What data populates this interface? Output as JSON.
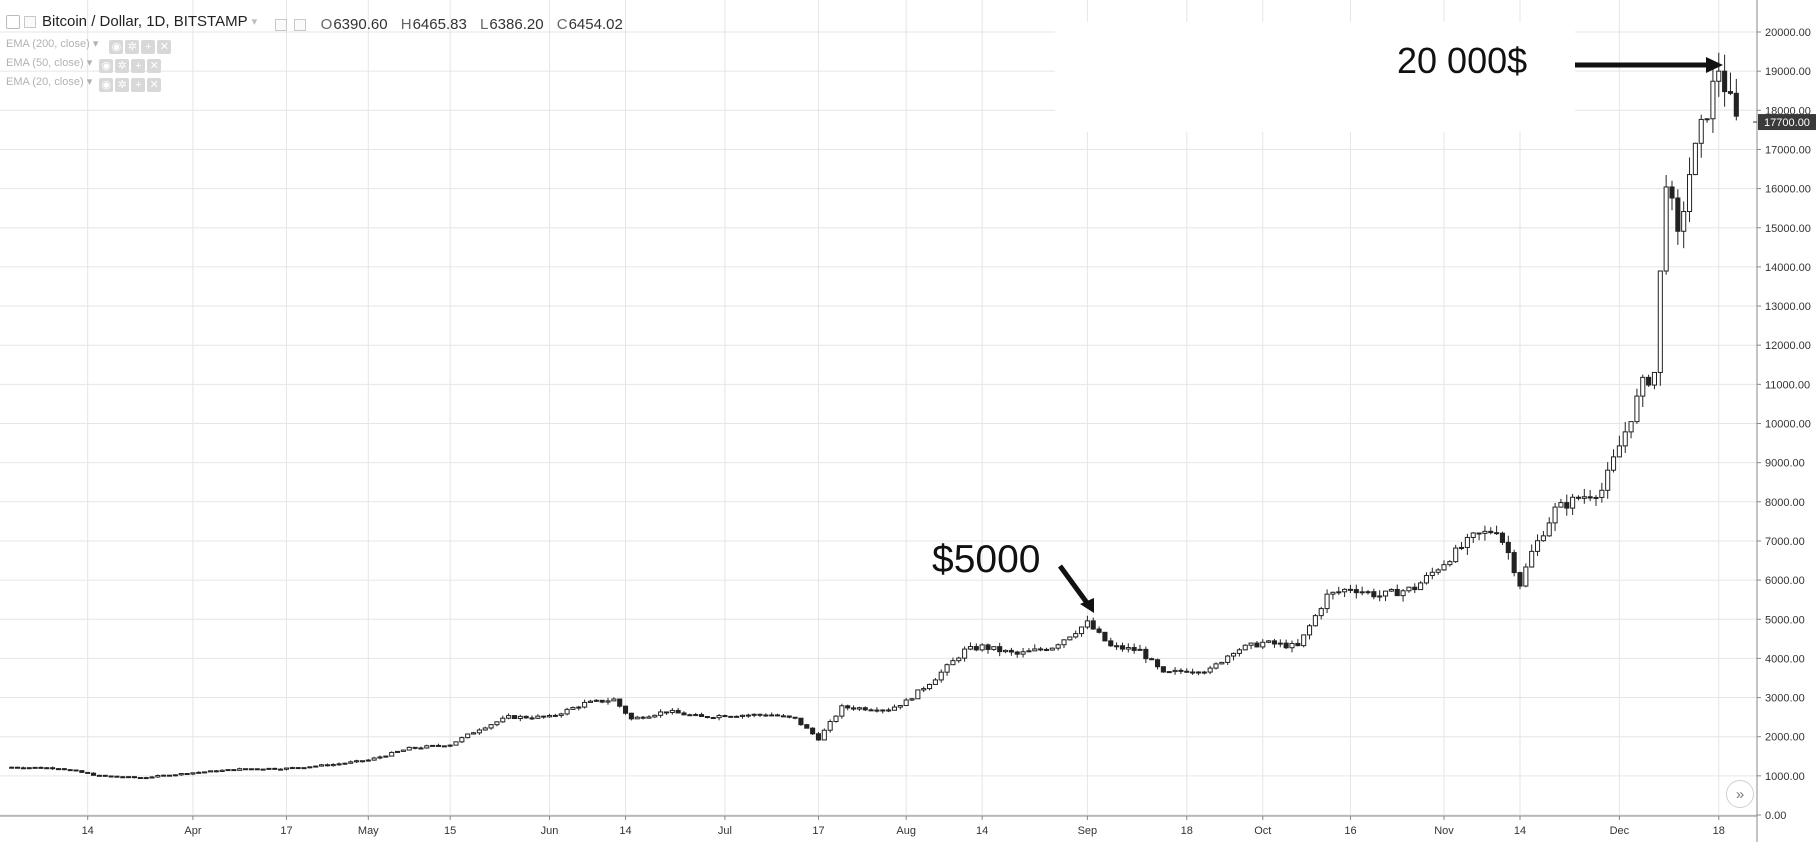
{
  "header": {
    "symbol": "Bitcoin / Dollar, 1D, BITSTAMP",
    "ohlc": {
      "o_label": "O",
      "o_value": "6390.60",
      "h_label": "H",
      "h_value": "6465.83",
      "l_label": "L",
      "l_value": "6386.20",
      "c_label": "C",
      "c_value": "6454.02"
    },
    "indicators": [
      {
        "label": "EMA (200, close)"
      },
      {
        "label": "EMA (50, close)"
      },
      {
        "label": "EMA (20, close)"
      }
    ]
  },
  "annotations": {
    "left_label": "$5000",
    "right_label": "20 000$"
  },
  "price_tag": "17700.00",
  "colors": {
    "up": "#ffffff",
    "down": "#222222",
    "grid": "#e6e6e6",
    "axis_text": "#333333",
    "price_tag_bg": "#3a3a3a"
  },
  "chart_data": {
    "type": "candlestick",
    "title": "Bitcoin / Dollar, 1D, BITSTAMP",
    "xlabel": "",
    "ylabel": "",
    "ylim": [
      0,
      20000
    ],
    "y_ticks": [
      "0.00",
      "1000.00",
      "2000.00",
      "3000.00",
      "4000.00",
      "5000.00",
      "6000.00",
      "7000.00",
      "8000.00",
      "9000.00",
      "10000.00",
      "11000.00",
      "12000.00",
      "13000.00",
      "14000.00",
      "15000.00",
      "16000.00",
      "17000.00",
      "18000.00",
      "19000.00",
      "20000.00"
    ],
    "x_labels": [
      {
        "label": "14",
        "day": 13
      },
      {
        "label": "Apr",
        "day": 31
      },
      {
        "label": "17",
        "day": 47
      },
      {
        "label": "May",
        "day": 61
      },
      {
        "label": "15",
        "day": 75
      },
      {
        "label": "Jun",
        "day": 92
      },
      {
        "label": "14",
        "day": 105
      },
      {
        "label": "Jul",
        "day": 122
      },
      {
        "label": "17",
        "day": 138
      },
      {
        "label": "Aug",
        "day": 153
      },
      {
        "label": "14",
        "day": 166
      },
      {
        "label": "Sep",
        "day": 184
      },
      {
        "label": "18",
        "day": 201
      },
      {
        "label": "Oct",
        "day": 214
      },
      {
        "label": "16",
        "day": 229
      },
      {
        "label": "Nov",
        "day": 245
      },
      {
        "label": "14",
        "day": 258
      },
      {
        "label": "Dec",
        "day": 275
      },
      {
        "label": "18",
        "day": 292
      }
    ],
    "close_points": [
      [
        0,
        1220
      ],
      [
        8,
        1200
      ],
      [
        15,
        1000
      ],
      [
        22,
        950
      ],
      [
        31,
        1080
      ],
      [
        40,
        1180
      ],
      [
        47,
        1190
      ],
      [
        55,
        1290
      ],
      [
        61,
        1400
      ],
      [
        68,
        1700
      ],
      [
        75,
        1800
      ],
      [
        80,
        2200
      ],
      [
        85,
        2500
      ],
      [
        92,
        2500
      ],
      [
        98,
        2850
      ],
      [
        103,
        2950
      ],
      [
        106,
        2450
      ],
      [
        112,
        2650
      ],
      [
        118,
        2500
      ],
      [
        122,
        2550
      ],
      [
        130,
        2560
      ],
      [
        134,
        2450
      ],
      [
        138,
        1950
      ],
      [
        142,
        2750
      ],
      [
        150,
        2700
      ],
      [
        153,
        2900
      ],
      [
        158,
        3500
      ],
      [
        163,
        4200
      ],
      [
        166,
        4300
      ],
      [
        172,
        4100
      ],
      [
        178,
        4300
      ],
      [
        184,
        4900
      ],
      [
        188,
        4300
      ],
      [
        193,
        4200
      ],
      [
        197,
        3600
      ],
      [
        201,
        3700
      ],
      [
        205,
        3700
      ],
      [
        209,
        4200
      ],
      [
        214,
        4400
      ],
      [
        220,
        4300
      ],
      [
        225,
        5600
      ],
      [
        229,
        5800
      ],
      [
        234,
        5600
      ],
      [
        240,
        5800
      ],
      [
        245,
        6450
      ],
      [
        250,
        7100
      ],
      [
        254,
        7300
      ],
      [
        256,
        6700
      ],
      [
        258,
        5900
      ],
      [
        260,
        6700
      ],
      [
        264,
        7800
      ],
      [
        268,
        8100
      ],
      [
        272,
        8300
      ],
      [
        276,
        9800
      ],
      [
        279,
        11000
      ],
      [
        281,
        11300
      ],
      [
        283,
        16300
      ],
      [
        285,
        14700
      ],
      [
        287,
        16400
      ],
      [
        289,
        17500
      ],
      [
        292,
        19100
      ],
      [
        295,
        17700
      ]
    ],
    "last_price": 17700
  }
}
